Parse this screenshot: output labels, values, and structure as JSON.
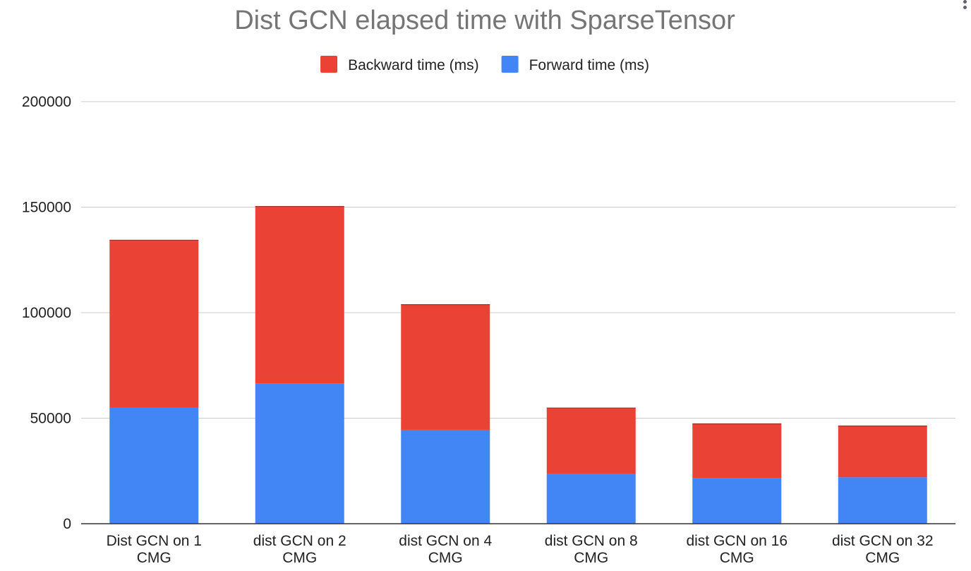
{
  "chart_data": {
    "type": "bar",
    "stacked": true,
    "title": "Dist GCN elapsed time with SparseTensor",
    "categories": [
      [
        "Dist GCN on 1",
        "CMG"
      ],
      [
        "dist GCN on 2",
        "CMG"
      ],
      [
        "dist GCN on 4",
        "CMG"
      ],
      [
        "dist GCN on 8",
        "CMG"
      ],
      [
        "dist GCN on 16",
        "CMG"
      ],
      [
        "dist GCN on 32",
        "CMG"
      ]
    ],
    "series": [
      {
        "name": "Forward time (ms)",
        "color": "#4285f4",
        "values": [
          55000,
          66500,
          44500,
          23500,
          21500,
          22000
        ]
      },
      {
        "name": "Backward time (ms)",
        "color": "#ea4335",
        "values": [
          79500,
          84000,
          59500,
          31500,
          26000,
          24500
        ]
      }
    ],
    "legend_order": [
      1,
      0
    ],
    "legend_position": "top",
    "ylim": [
      0,
      200000
    ],
    "yticks": [
      0,
      50000,
      100000,
      150000,
      200000
    ],
    "ytick_labels": [
      "0",
      "50000",
      "100000",
      "150000",
      "200000"
    ],
    "grid": true,
    "xlabel": "",
    "ylabel": ""
  }
}
